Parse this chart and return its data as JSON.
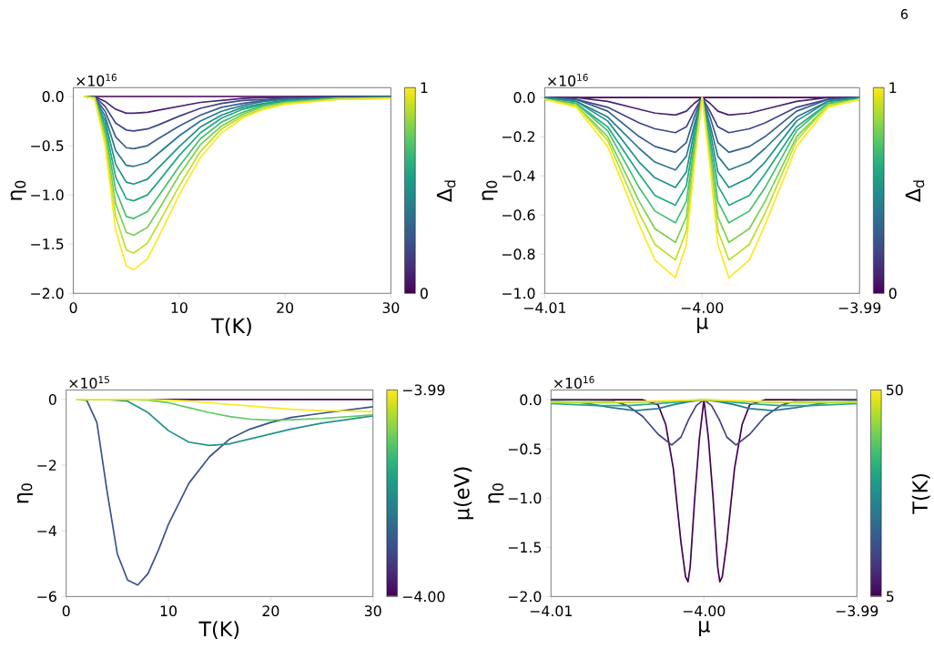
{
  "chart_data": [
    {
      "type": "line",
      "xlabel": "T(K)",
      "ylabel": "η$_{0}$",
      "clabel": "Δ$_{d}$",
      "annotations": [
        "×10$^{16}$",
        "6"
      ],
      "xlim": [
        0,
        30
      ],
      "ylim": [
        -2.0,
        0.09
      ],
      "xticks": [
        0,
        10,
        20,
        30
      ],
      "yticks": [
        {
          "value": 0,
          "label": "0.0"
        },
        {
          "value": -0.5,
          "label": "−0.5"
        },
        {
          "value": -1.0,
          "label": "−1.0"
        },
        {
          "value": -1.5,
          "label": "−1.5"
        },
        {
          "value": -2.0,
          "label": "−2.0"
        }
      ],
      "clim": [
        0,
        1
      ],
      "cticks": [
        0,
        1
      ],
      "x": [
        1,
        2,
        3,
        4,
        5,
        5.7,
        7,
        8,
        10,
        12,
        14,
        16,
        18,
        20,
        25,
        30
      ],
      "series": [
        {
          "color": "#440154",
          "values": [
            0,
            0,
            0,
            0,
            0,
            0,
            0,
            0,
            0,
            0,
            0,
            0,
            0,
            0,
            0,
            0
          ]
        },
        {
          "color": "#482475",
          "values": [
            0,
            0,
            -0.05,
            -0.13,
            -0.17,
            -0.17,
            -0.16,
            -0.14,
            -0.1,
            -0.06,
            -0.04,
            -0.02,
            -0.01,
            -0.01,
            0,
            0
          ]
        },
        {
          "color": "#414487",
          "values": [
            0,
            0,
            -0.1,
            -0.27,
            -0.34,
            -0.35,
            -0.33,
            -0.29,
            -0.2,
            -0.12,
            -0.07,
            -0.04,
            -0.03,
            -0.02,
            -0.01,
            0
          ]
        },
        {
          "color": "#355f8d",
          "values": [
            0,
            -0.01,
            -0.15,
            -0.41,
            -0.52,
            -0.53,
            -0.5,
            -0.43,
            -0.3,
            -0.19,
            -0.11,
            -0.07,
            -0.04,
            -0.02,
            -0.01,
            -0.01
          ]
        },
        {
          "color": "#2a788e",
          "values": [
            0,
            -0.01,
            -0.2,
            -0.55,
            -0.7,
            -0.71,
            -0.67,
            -0.58,
            -0.4,
            -0.25,
            -0.15,
            -0.09,
            -0.05,
            -0.03,
            -0.01,
            -0.01
          ]
        },
        {
          "color": "#21918c",
          "values": [
            0,
            -0.01,
            -0.25,
            -0.69,
            -0.87,
            -0.89,
            -0.84,
            -0.73,
            -0.51,
            -0.31,
            -0.19,
            -0.11,
            -0.07,
            -0.04,
            -0.02,
            -0.01
          ]
        },
        {
          "color": "#22a884",
          "values": [
            0,
            -0.01,
            -0.3,
            -0.82,
            -1.04,
            -1.06,
            -1.0,
            -0.87,
            -0.6,
            -0.37,
            -0.22,
            -0.13,
            -0.08,
            -0.05,
            -0.02,
            -0.01
          ]
        },
        {
          "color": "#44bf70",
          "values": [
            0,
            -0.01,
            -0.35,
            -0.95,
            -1.22,
            -1.24,
            -1.17,
            -1.02,
            -0.71,
            -0.43,
            -0.26,
            -0.16,
            -0.09,
            -0.06,
            -0.02,
            -0.01
          ]
        },
        {
          "color": "#7ad151",
          "values": [
            0,
            -0.01,
            -0.39,
            -1.09,
            -1.38,
            -1.41,
            -1.33,
            -1.16,
            -0.8,
            -0.49,
            -0.3,
            -0.18,
            -0.1,
            -0.06,
            -0.02,
            -0.02
          ]
        },
        {
          "color": "#bddf26",
          "values": [
            0,
            -0.02,
            -0.45,
            -1.22,
            -1.56,
            -1.59,
            -1.49,
            -1.3,
            -0.91,
            -0.56,
            -0.33,
            -0.2,
            -0.12,
            -0.07,
            -0.03,
            -0.02
          ]
        },
        {
          "color": "#fde725",
          "values": [
            0,
            -0.02,
            -0.49,
            -1.36,
            -1.72,
            -1.76,
            -1.65,
            -1.44,
            -1.0,
            -0.62,
            -0.37,
            -0.22,
            -0.13,
            -0.08,
            -0.03,
            -0.02
          ]
        }
      ]
    },
    {
      "type": "line",
      "xlabel": "μ",
      "ylabel": "η$_{0}$",
      "clabel": "Δ$_{d}$",
      "annotations": [
        "×10$^{16}$"
      ],
      "xlim": [
        -4.01,
        -3.99
      ],
      "ylim": [
        -1.0,
        0.05
      ],
      "xticks": [
        {
          "value": -4.01,
          "label": "−4.01"
        },
        {
          "value": -4.0,
          "label": "−4.00"
        },
        {
          "value": -3.99,
          "label": "−3.99"
        }
      ],
      "yticks": [
        {
          "value": 0,
          "label": "0.0"
        },
        {
          "value": -0.2,
          "label": "−0.2"
        },
        {
          "value": -0.4,
          "label": "−0.4"
        },
        {
          "value": -0.6,
          "label": "−0.6"
        },
        {
          "value": -0.8,
          "label": "−0.8"
        },
        {
          "value": -1.0,
          "label": "−1.0"
        }
      ],
      "clim": [
        0,
        1
      ],
      "cticks": [
        0,
        1
      ],
      "x": [
        -4.01,
        -4.008,
        -4.006,
        -4.004,
        -4.003,
        -4.0017,
        -4.001,
        -4.0005,
        -4.0,
        -3.9995,
        -3.999,
        -3.9983,
        -3.997,
        -3.996,
        -3.994,
        -3.992,
        -3.99
      ],
      "series": [
        {
          "color": "#440154",
          "values": [
            0,
            0,
            0,
            0,
            0,
            0,
            0,
            0,
            0,
            0,
            0,
            0,
            0,
            0,
            0,
            0,
            0
          ]
        },
        {
          "color": "#482475",
          "values": [
            0,
            0,
            -0.02,
            -0.06,
            -0.08,
            -0.09,
            -0.07,
            -0.03,
            0,
            -0.03,
            -0.07,
            -0.09,
            -0.08,
            -0.06,
            -0.02,
            0,
            0
          ]
        },
        {
          "color": "#414487",
          "values": [
            0,
            -0.01,
            -0.05,
            -0.13,
            -0.16,
            -0.18,
            -0.15,
            -0.07,
            0,
            -0.07,
            -0.15,
            -0.18,
            -0.16,
            -0.13,
            -0.05,
            -0.01,
            0
          ]
        },
        {
          "color": "#355f8d",
          "values": [
            0,
            -0.01,
            -0.07,
            -0.2,
            -0.25,
            -0.28,
            -0.23,
            -0.1,
            0,
            -0.1,
            -0.23,
            -0.28,
            -0.25,
            -0.2,
            -0.07,
            -0.01,
            0
          ]
        },
        {
          "color": "#2a788e",
          "values": [
            0,
            -0.02,
            -0.1,
            -0.26,
            -0.33,
            -0.37,
            -0.3,
            -0.14,
            0,
            -0.14,
            -0.3,
            -0.37,
            -0.33,
            -0.26,
            -0.1,
            -0.02,
            0
          ]
        },
        {
          "color": "#21918c",
          "values": [
            0,
            -0.02,
            -0.12,
            -0.33,
            -0.41,
            -0.46,
            -0.38,
            -0.17,
            0,
            -0.17,
            -0.38,
            -0.46,
            -0.41,
            -0.33,
            -0.12,
            -0.02,
            0
          ]
        },
        {
          "color": "#22a884",
          "values": [
            -0.01,
            -0.03,
            -0.15,
            -0.39,
            -0.5,
            -0.55,
            -0.45,
            -0.21,
            0,
            -0.21,
            -0.45,
            -0.55,
            -0.5,
            -0.39,
            -0.15,
            -0.03,
            -0.01
          ]
        },
        {
          "color": "#44bf70",
          "values": [
            -0.01,
            -0.03,
            -0.17,
            -0.46,
            -0.58,
            -0.64,
            -0.53,
            -0.25,
            0,
            -0.25,
            -0.53,
            -0.64,
            -0.58,
            -0.46,
            -0.17,
            -0.03,
            -0.01
          ]
        },
        {
          "color": "#7ad151",
          "values": [
            -0.01,
            -0.04,
            -0.2,
            -0.53,
            -0.67,
            -0.74,
            -0.61,
            -0.28,
            0,
            -0.28,
            -0.61,
            -0.74,
            -0.67,
            -0.53,
            -0.2,
            -0.04,
            -0.01
          ]
        },
        {
          "color": "#bddf26",
          "values": [
            -0.01,
            -0.04,
            -0.22,
            -0.59,
            -0.75,
            -0.83,
            -0.68,
            -0.32,
            0,
            -0.32,
            -0.68,
            -0.83,
            -0.75,
            -0.59,
            -0.22,
            -0.04,
            -0.01
          ]
        },
        {
          "color": "#fde725",
          "values": [
            -0.01,
            -0.05,
            -0.25,
            -0.65,
            -0.83,
            -0.92,
            -0.75,
            -0.35,
            0,
            -0.35,
            -0.75,
            -0.92,
            -0.83,
            -0.65,
            -0.25,
            -0.05,
            -0.01
          ]
        }
      ]
    },
    {
      "type": "line",
      "xlabel": "T(K)",
      "ylabel": "η$_{0}$",
      "clabel": "μ(eV)",
      "annotations": [
        "×10$^{15}$"
      ],
      "xlim": [
        0,
        30
      ],
      "ylim": [
        -6,
        0.29
      ],
      "xticks": [
        0,
        10,
        20,
        30
      ],
      "yticks": [
        {
          "value": 0,
          "label": "0"
        },
        {
          "value": -2,
          "label": "−2"
        },
        {
          "value": -4,
          "label": "−4"
        },
        {
          "value": -6,
          "label": "−6"
        }
      ],
      "clim": [
        -4.0,
        -3.99
      ],
      "cticks": [
        {
          "value": -4.0,
          "label": "−4.00"
        },
        {
          "value": -3.99,
          "label": "−3.99"
        }
      ],
      "series": [
        {
          "color": "#440154",
          "x": [
            1,
            30
          ],
          "values": [
            0,
            0
          ]
        },
        {
          "color": "#3b528b",
          "x": [
            1,
            2,
            3,
            4,
            5,
            6,
            7,
            8,
            9,
            10,
            12,
            14,
            16,
            18,
            20,
            22,
            25,
            30
          ],
          "values": [
            0,
            -0.02,
            -0.7,
            -2.8,
            -4.7,
            -5.5,
            -5.65,
            -5.3,
            -4.6,
            -3.8,
            -2.55,
            -1.75,
            -1.2,
            -0.9,
            -0.7,
            -0.55,
            -0.42,
            -0.22
          ]
        },
        {
          "color": "#21918c",
          "x": [
            1,
            4,
            6,
            8,
            10,
            12,
            14,
            16,
            18,
            20,
            22,
            25,
            30
          ],
          "values": [
            0,
            0,
            -0.05,
            -0.4,
            -0.95,
            -1.3,
            -1.4,
            -1.35,
            -1.2,
            -1.05,
            -0.9,
            -0.72,
            -0.5
          ]
        },
        {
          "color": "#5ec962",
          "x": [
            1,
            6,
            8,
            10,
            12,
            14,
            16,
            18,
            20,
            22,
            25,
            30
          ],
          "values": [
            0,
            0,
            -0.02,
            -0.1,
            -0.25,
            -0.4,
            -0.52,
            -0.6,
            -0.63,
            -0.62,
            -0.58,
            -0.47
          ]
        },
        {
          "color": "#fde725",
          "x": [
            1,
            8,
            10,
            12,
            14,
            16,
            18,
            20,
            22,
            25,
            30
          ],
          "values": [
            0,
            0,
            -0.02,
            -0.05,
            -0.1,
            -0.15,
            -0.2,
            -0.25,
            -0.3,
            -0.34,
            -0.37
          ]
        }
      ]
    },
    {
      "type": "line",
      "xlabel": "μ",
      "ylabel": "η$_{0}$",
      "clabel": "T(K)",
      "annotations": [
        "×10$^{16}$"
      ],
      "xlim": [
        -4.01,
        -3.99
      ],
      "ylim": [
        -2.0,
        0.1
      ],
      "xticks": [
        {
          "value": -4.01,
          "label": "−4.01"
        },
        {
          "value": -4.0,
          "label": "−4.00"
        },
        {
          "value": -3.99,
          "label": "−3.99"
        }
      ],
      "yticks": [
        {
          "value": 0,
          "label": "0.0"
        },
        {
          "value": -0.5,
          "label": "−0.5"
        },
        {
          "value": -1.0,
          "label": "−1.0"
        },
        {
          "value": -1.5,
          "label": "−1.5"
        },
        {
          "value": -2.0,
          "label": "−2.0"
        }
      ],
      "clim": [
        5,
        50
      ],
      "cticks": [
        5,
        50
      ],
      "series": [
        {
          "color": "#440154",
          "x": [
            -4.01,
            -4.004,
            -4.003,
            -4.0025,
            -4.002,
            -4.0015,
            -4.0012,
            -4.00104,
            -4.0009,
            -4.0006,
            -4.0003,
            -4.0,
            -3.9997,
            -3.9994,
            -3.9991,
            -3.99896,
            -3.9988,
            -3.9985,
            -3.998,
            -3.9975,
            -3.997,
            -3.996,
            -3.99
          ],
          "values": [
            0,
            0,
            -0.05,
            -0.25,
            -0.7,
            -1.45,
            -1.8,
            -1.85,
            -1.7,
            -1.0,
            -0.4,
            0,
            -0.4,
            -1.0,
            -1.7,
            -1.85,
            -1.8,
            -1.45,
            -0.7,
            -0.25,
            -0.05,
            0,
            0
          ]
        },
        {
          "color": "#414487",
          "x": [
            -4.01,
            -4.006,
            -4.005,
            -4.004,
            -4.003,
            -4.0021,
            -4.0015,
            -4.001,
            -4.0005,
            -4.0,
            -3.9995,
            -3.999,
            -3.9985,
            -3.9979,
            -3.997,
            -3.996,
            -3.995,
            -3.994,
            -3.99
          ],
          "values": [
            0,
            -0.01,
            -0.06,
            -0.17,
            -0.35,
            -0.46,
            -0.38,
            -0.2,
            -0.06,
            0,
            -0.06,
            -0.2,
            -0.38,
            -0.46,
            -0.35,
            -0.17,
            -0.06,
            -0.01,
            0
          ]
        },
        {
          "color": "#2a788e",
          "x": [
            -4.01,
            -4.008,
            -4.006,
            -4.0045,
            -4.003,
            -4.002,
            -4.001,
            -4.0,
            -3.999,
            -3.998,
            -3.997,
            -3.9955,
            -3.994,
            -3.992,
            -3.99
          ],
          "values": [
            -0.01,
            -0.03,
            -0.08,
            -0.11,
            -0.09,
            -0.05,
            -0.02,
            0,
            -0.02,
            -0.05,
            -0.09,
            -0.11,
            -0.08,
            -0.03,
            -0.01
          ]
        },
        {
          "color": "#22a884",
          "x": [
            -4.01,
            -4.007,
            -4.005,
            -4.003,
            -4.0015,
            -4.0,
            -3.9985,
            -3.997,
            -3.995,
            -3.993,
            -3.99
          ],
          "values": [
            -0.04,
            -0.06,
            -0.06,
            -0.04,
            -0.02,
            0,
            -0.02,
            -0.04,
            -0.06,
            -0.06,
            -0.04
          ]
        },
        {
          "color": "#7ad151",
          "x": [
            -4.01,
            -4.006,
            -4.003,
            -4.0,
            -3.997,
            -3.994,
            -3.99
          ],
          "values": [
            -0.03,
            -0.03,
            -0.02,
            0,
            -0.02,
            -0.03,
            -0.03
          ]
        },
        {
          "color": "#fde725",
          "x": [
            -4.01,
            -4.005,
            -4.0,
            -3.995,
            -3.99
          ],
          "values": [
            -0.02,
            -0.02,
            0,
            -0.02,
            -0.02
          ]
        }
      ]
    }
  ]
}
